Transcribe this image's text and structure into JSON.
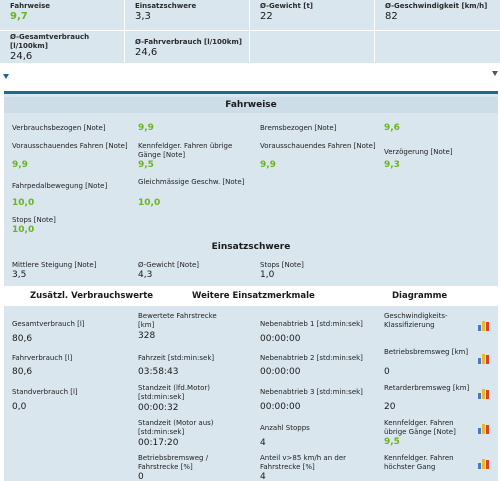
{
  "summary": {
    "fahrweise": {
      "label": "Fahrweise",
      "value": "9,7"
    },
    "einsatzschwere": {
      "label": "Einsatzschwere",
      "value": "3,3"
    },
    "gewicht": {
      "label": "Ø-Gewicht [t]",
      "value": "22"
    },
    "geschwindigkeit": {
      "label": "Ø-Geschwindigkeit [km/h]",
      "value": "82"
    },
    "gesamtverbrauch": {
      "label": "Ø-Gesamtverbrauch [l/100km]",
      "value": "24,6"
    },
    "fahrverbrauch": {
      "label": "Ø-Fahrverbrauch [l/100km]",
      "value": "24,6"
    }
  },
  "fahrweise": {
    "title": "Fahrweise",
    "verbrauchsbezogen": {
      "label": "Verbrauchsbezogen [Note]",
      "value": "9,9"
    },
    "bremsbezogen": {
      "label": "Bremsbezogen [Note]",
      "value": "9,6"
    },
    "vorausschauend1": {
      "label": "Vorausschauendes Fahren [Note]",
      "value": "9,9"
    },
    "kennfeld": {
      "label": "Kennfeldger. Fahren übrige Gänge [Note]",
      "value": "9,5"
    },
    "vorausschauend2": {
      "label": "Vorausschauendes Fahren [Note]",
      "value": "9,9"
    },
    "verzoegerung": {
      "label": "Verzögerung [Note]",
      "value": "9,3"
    },
    "fahrpedal": {
      "label": "Fahrpedalbewegung [Note]",
      "value": "10,0"
    },
    "gleichmaessig": {
      "label": "Gleichmässige Geschw. [Note]",
      "value": "10,0"
    },
    "stops": {
      "label": "Stops [Note]",
      "value": "10,0"
    }
  },
  "einsatzschwere": {
    "title": "Einsatzschwere",
    "steigung": {
      "label": "Mittlere Steigung [Note]",
      "value": "3,5"
    },
    "gewicht": {
      "label": "Ø-Gewicht [Note]",
      "value": "4,3"
    },
    "stops": {
      "label": "Stops [Note]",
      "value": "1,0"
    }
  },
  "headers": {
    "verbrauch": "Zusätzl. Verbrauchswerte",
    "einsatz": "Weitere Einsatzmerkmale",
    "diagramme": "Diagramme"
  },
  "verbrauch": {
    "gesamt": {
      "label": "Gesamtverbrauch [l]",
      "value": "80,6"
    },
    "fahr": {
      "label": "Fahrverbrauch [l]",
      "value": "80,6"
    },
    "stand": {
      "label": "Standverbrauch [l]",
      "value": "0,0"
    }
  },
  "merkmale": {
    "strecke": {
      "label": "Bewertete Fahrstrecke [km]",
      "value": "328"
    },
    "fahrzeit": {
      "label": "Fahrzeit [std:min:sek]",
      "value": "03:58:43"
    },
    "standzeit_motor": {
      "label": "Standzeit (lfd.Motor) [std:min:sek]",
      "value": "00:00:32"
    },
    "standzeit_aus": {
      "label": "Standzeit (Motor aus) [std:min:sek]",
      "value": "00:17:20"
    },
    "betriebsbrems_anteil": {
      "label": "Betriebsbremsweg / Fahrstrecke [%]",
      "value": "0"
    },
    "neben1": {
      "label": "Nebenabtrieb 1 [std:min:sek]",
      "value": "00:00:00"
    },
    "neben2": {
      "label": "Nebenabtrieb 2 [std:min:sek]",
      "value": "00:00:00"
    },
    "neben3": {
      "label": "Nebenabtrieb 3 [std:min:sek]",
      "value": "00:00:00"
    },
    "stopps": {
      "label": "Anzahl Stopps",
      "value": "4"
    },
    "anteil85": {
      "label": "Anteil v>85 km/h an der Fahrstrecke [%]",
      "value": "4"
    }
  },
  "diagramme": {
    "geschw": {
      "label": "Geschwindigkeits-Klassifizierung",
      "value": ""
    },
    "betriebsbremsweg": {
      "label": "Betriebsbremsweg [km]",
      "value": "0"
    },
    "retarder": {
      "label": "Retarderbremsweg [km]",
      "value": "20"
    },
    "kennfeld_uebrig": {
      "label": "Kennfeldger. Fahren übrige Gänge [Note]",
      "value": "9,5"
    },
    "kennfeld_hoechst": {
      "label": "Kennfeldger. Fahren höchster Gang",
      "value": ""
    }
  }
}
